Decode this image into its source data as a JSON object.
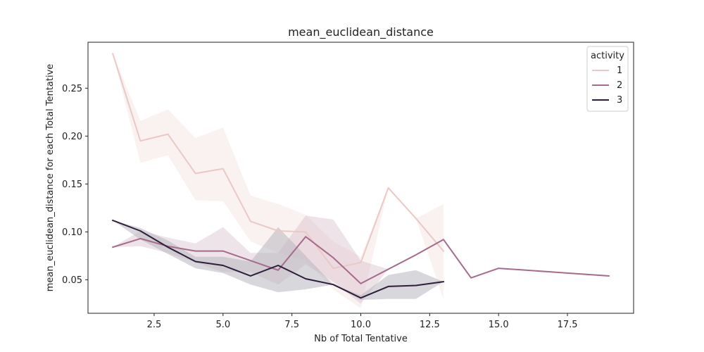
{
  "chart_data": {
    "type": "line",
    "title": "mean_euclidean_distance",
    "xlabel": "Nb of Total Tentative",
    "ylabel": "mean_euclidean_distance for each Total Tentative",
    "xlim": [
      0.1,
      19.9
    ],
    "ylim": [
      0.015,
      0.298
    ],
    "xticks": [
      2.5,
      5.0,
      7.5,
      10.0,
      12.5,
      15.0,
      17.5
    ],
    "xtick_labels": [
      "2.5",
      "5.0",
      "7.5",
      "10.0",
      "12.5",
      "15.0",
      "17.5"
    ],
    "yticks": [
      0.05,
      0.1,
      0.15,
      0.2,
      0.25
    ],
    "ytick_labels": [
      "0.05",
      "0.10",
      "0.15",
      "0.20",
      "0.25"
    ],
    "grid": false,
    "legend": {
      "title": "activity",
      "position": "top-right"
    },
    "series": [
      {
        "name": "1",
        "color": "#ebc8c5",
        "fill_color": "#f3dedb",
        "x": [
          1,
          2,
          3,
          4,
          5,
          6,
          7,
          8,
          9,
          10,
          11,
          12,
          13
        ],
        "y": [
          0.286,
          0.195,
          0.202,
          0.161,
          0.166,
          0.111,
          0.101,
          0.1,
          0.062,
          0.068,
          0.146,
          0.114,
          0.08
        ],
        "ci_low": [
          0.286,
          0.172,
          0.18,
          0.133,
          0.132,
          0.09,
          0.078,
          0.07,
          0.04,
          0.02,
          0.146,
          0.114,
          0.03
        ],
        "ci_high": [
          0.286,
          0.216,
          0.228,
          0.198,
          0.209,
          0.138,
          0.129,
          0.118,
          0.09,
          0.074,
          0.146,
          0.114,
          0.129
        ]
      },
      {
        "name": "2",
        "color": "#a76a8c",
        "fill_color": "#d4b8c8",
        "x": [
          1,
          2,
          3,
          4,
          5,
          6,
          7,
          8,
          9,
          10,
          11,
          12,
          13,
          14,
          15,
          16,
          17,
          18,
          19
        ],
        "y": [
          0.084,
          0.093,
          0.085,
          0.08,
          0.08,
          0.07,
          0.06,
          0.095,
          0.073,
          0.046,
          0.061,
          0.076,
          0.092,
          0.052,
          0.062,
          0.06,
          0.058,
          0.056,
          0.054
        ],
        "ci_low": [
          0.084,
          0.085,
          0.078,
          0.068,
          0.058,
          0.058,
          0.045,
          0.066,
          0.048,
          0.025,
          0.061,
          0.076,
          0.092,
          0.052,
          0.062,
          0.06,
          0.058,
          0.056,
          0.054
        ],
        "ci_high": [
          0.084,
          0.101,
          0.094,
          0.088,
          0.105,
          0.078,
          0.078,
          0.117,
          0.113,
          0.07,
          0.061,
          0.076,
          0.092,
          0.052,
          0.062,
          0.06,
          0.058,
          0.056,
          0.054
        ]
      },
      {
        "name": "3",
        "color": "#2d1e3e",
        "fill_color": "#b8b6be",
        "x": [
          1,
          2,
          3,
          4,
          5,
          6,
          7,
          8,
          9,
          10,
          11,
          12,
          13
        ],
        "y": [
          0.112,
          0.101,
          0.084,
          0.069,
          0.065,
          0.054,
          0.065,
          0.051,
          0.045,
          0.031,
          0.043,
          0.044,
          0.048
        ],
        "ci_low": [
          0.112,
          0.092,
          0.077,
          0.062,
          0.057,
          0.045,
          0.037,
          0.04,
          0.045,
          0.029,
          0.03,
          0.03,
          0.048
        ],
        "ci_high": [
          0.112,
          0.104,
          0.091,
          0.074,
          0.074,
          0.069,
          0.105,
          0.075,
          0.045,
          0.034,
          0.055,
          0.06,
          0.048
        ]
      }
    ]
  }
}
